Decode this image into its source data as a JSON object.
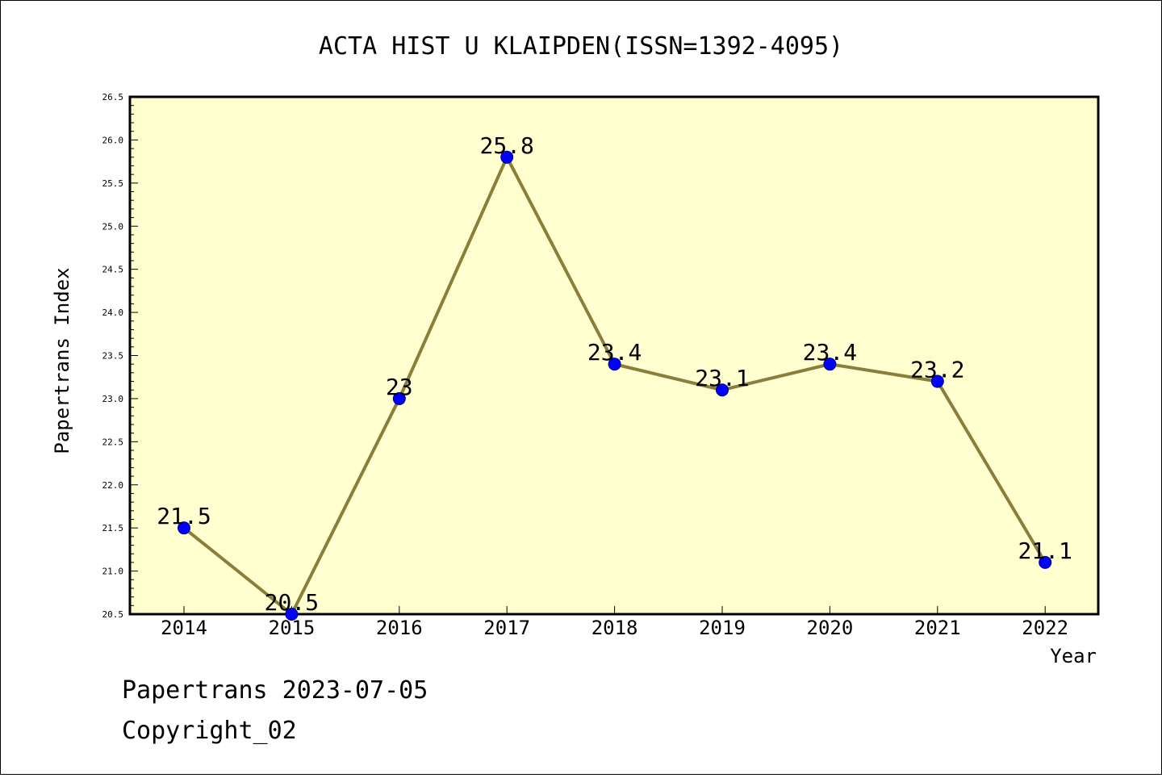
{
  "title": "ACTA HIST U KLAIPDEN(ISSN=1392-4095)",
  "footer": {
    "line1": "Papertrans 2023-07-05",
    "line2": "Copyright_02"
  },
  "colors": {
    "plot_bg": "#ffffd0",
    "line": "#8b7d3a",
    "marker": "#0000ff"
  },
  "chart_data": {
    "type": "line",
    "title": "ACTA HIST U KLAIPDEN(ISSN=1392-4095)",
    "xlabel": "Year",
    "ylabel": "Papertrans Index",
    "categories": [
      "2014",
      "2015",
      "2016",
      "2017",
      "2018",
      "2019",
      "2020",
      "2021",
      "2022"
    ],
    "values": [
      21.5,
      20.5,
      23,
      25.8,
      23.4,
      23.1,
      23.4,
      23.2,
      21.1
    ],
    "labels": [
      "21.5",
      "20.5",
      "23",
      "25.8",
      "23.4",
      "23.1",
      "23.4",
      "23.2",
      "21.1"
    ],
    "ylim": [
      20.5,
      26.5
    ],
    "yticks": [
      "20.5",
      "21.0",
      "21.5",
      "22.0",
      "22.5",
      "23.0",
      "23.5",
      "24.0",
      "24.5",
      "25.0",
      "25.5",
      "26.0",
      "26.5"
    ],
    "grid": false,
    "legend": "none"
  }
}
